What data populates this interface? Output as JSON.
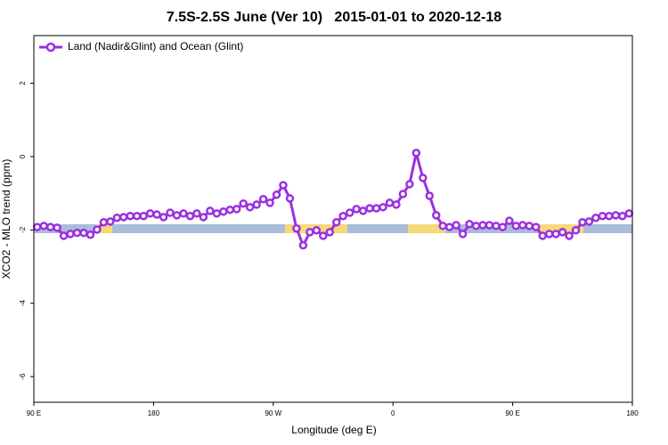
{
  "chart_data": {
    "type": "line",
    "title": "7.5S-2.5S June (Ver 10)   2015-01-01 to 2020-12-18",
    "x_label": "Longitude (deg E)",
    "y_label": "XCO2 - MLO trend (ppm)",
    "xlim": [
      90,
      540
    ],
    "ylim": [
      -6.7,
      3.3
    ],
    "xticks": [
      {
        "value": 90,
        "label": "90 E"
      },
      180,
      {
        "value": 270,
        "label": "90 W"
      },
      {
        "value": 360,
        "label": "0"
      },
      {
        "value": 450,
        "label": "90 E"
      },
      {
        "value": 540,
        "label": "180"
      }
    ],
    "yticks": [
      2,
      0,
      -2,
      -4,
      -6
    ],
    "legend_position": "top-left",
    "x": [
      92.5,
      97.5,
      102.5,
      107.5,
      112.5,
      117.5,
      122.5,
      127.5,
      132.5,
      137.5,
      142.5,
      147.5,
      152.5,
      157.5,
      162.5,
      167.5,
      172.5,
      177.5,
      182.5,
      187.5,
      192.5,
      197.5,
      202.5,
      207.5,
      212.5,
      217.5,
      222.5,
      227.5,
      232.5,
      237.5,
      242.5,
      247.5,
      252.5,
      257.5,
      262.5,
      267.5,
      272.5,
      277.5,
      282.5,
      287.5,
      292.5,
      297.5,
      302.5,
      307.5,
      312.5,
      317.5,
      322.5,
      327.5,
      332.5,
      337.5,
      342.5,
      347.5,
      352.5,
      357.5,
      362.5,
      367.5,
      372.5,
      377.5,
      382.5,
      387.5,
      392.5,
      397.5,
      402.5,
      407.5,
      412.5,
      417.5,
      422.5,
      427.5,
      432.5,
      437.5,
      442.5,
      447.5,
      452.5,
      457.5,
      462.5,
      467.5,
      472.5,
      477.5,
      482.5,
      487.5,
      492.5,
      497.5,
      502.5,
      507.5,
      512.5,
      517.5,
      522.5,
      527.5,
      532.5,
      537.5
    ],
    "series": [
      {
        "name": "Land (Nadir&Glint) and Ocean (Glint)",
        "color": "#9b30e0",
        "values": [
          -1.92,
          -1.89,
          -1.92,
          -1.94,
          -2.16,
          -2.11,
          -2.08,
          -2.08,
          -2.13,
          -1.99,
          -1.79,
          -1.77,
          -1.67,
          -1.65,
          -1.62,
          -1.62,
          -1.62,
          -1.55,
          -1.58,
          -1.65,
          -1.53,
          -1.6,
          -1.55,
          -1.62,
          -1.55,
          -1.65,
          -1.48,
          -1.55,
          -1.5,
          -1.45,
          -1.43,
          -1.28,
          -1.38,
          -1.31,
          -1.16,
          -1.26,
          -1.04,
          -0.78,
          -1.14,
          -1.96,
          -2.42,
          -2.06,
          -2.01,
          -2.16,
          -2.06,
          -1.79,
          -1.62,
          -1.53,
          -1.43,
          -1.48,
          -1.41,
          -1.41,
          -1.38,
          -1.26,
          -1.31,
          -1.02,
          -0.75,
          0.1,
          -0.58,
          -1.07,
          -1.6,
          -1.89,
          -1.92,
          -1.87,
          -2.11,
          -1.84,
          -1.89,
          -1.87,
          -1.87,
          -1.89,
          -1.92,
          -1.75,
          -1.89,
          -1.87,
          -1.89,
          -1.92,
          -2.16,
          -2.11,
          -2.11,
          -2.06,
          -2.16,
          -2.01,
          -1.79,
          -1.77,
          -1.67,
          -1.62,
          -1.62,
          -1.6,
          -1.62,
          -1.55
        ]
      }
    ]
  }
}
